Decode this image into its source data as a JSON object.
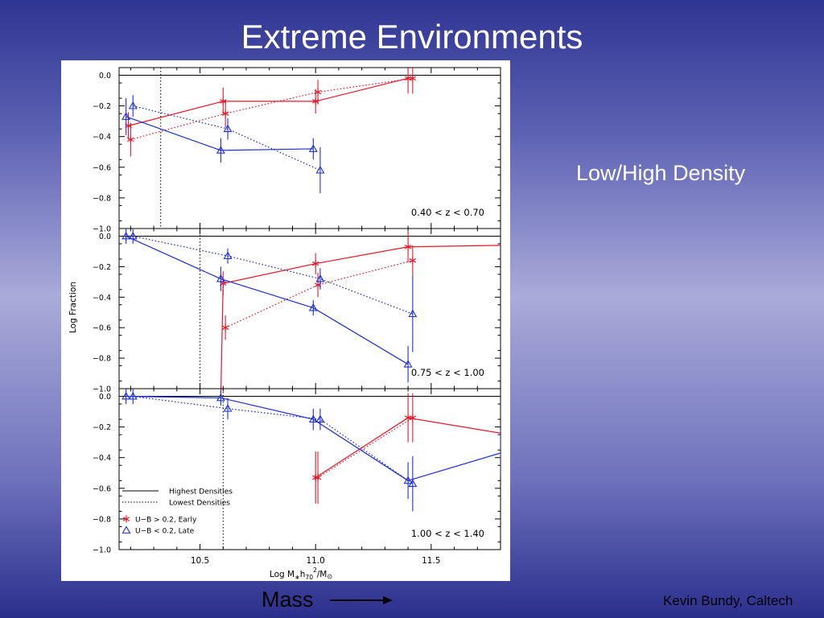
{
  "slide": {
    "title": "Extreme Environments",
    "side_label": "Low/High Density",
    "mass_label": "Mass",
    "credit": "Kevin Bundy, Caltech"
  },
  "colors": {
    "early": "#e8182a",
    "late": "#1f2fd6",
    "axis": "#000000"
  },
  "chart_data": {
    "type": "line",
    "ylabel": "Log Fraction",
    "xlabel_parts": [
      "Log M",
      "∗",
      "h",
      "70",
      "2",
      "/M",
      "⊙"
    ],
    "xlim": [
      10.15,
      11.8
    ],
    "ylim": [
      -1.0,
      0.05
    ],
    "xticks": [
      10.5,
      11.0,
      11.5
    ],
    "xtick_labels": [
      "10.5",
      "11.0",
      "11.5"
    ],
    "yticks": [
      0,
      -0.2,
      -0.4,
      -0.6,
      -0.8,
      -1.0
    ],
    "ytick_labels": [
      "0.0",
      "−0.2",
      "−0.4",
      "−0.6",
      "−0.8",
      "−1.0"
    ],
    "legend": {
      "placement": "bottom-left of bottom panel",
      "line_styles": [
        {
          "style": "solid",
          "label": "Highest Densities"
        },
        {
          "style": "dotted",
          "label": "Lowest Densities"
        }
      ],
      "populations": [
        {
          "marker": "asterisk",
          "color": "early",
          "label": "U−B > 0.2, Early"
        },
        {
          "marker": "triangle",
          "color": "late",
          "label": "U−B < 0.2, Late"
        }
      ]
    },
    "panels": [
      {
        "annotation": "0.40 < z < 0.70",
        "completeness_limit": 10.33,
        "series": [
          {
            "population": "early",
            "style": "solid",
            "points": [
              [
                10.19,
                -0.33,
                0.09
              ],
              [
                10.6,
                -0.17,
                0.09
              ],
              [
                11.0,
                -0.17,
                0.08
              ],
              [
                11.4,
                -0.02,
                0.1
              ]
            ]
          },
          {
            "population": "early",
            "style": "dotted",
            "points": [
              [
                10.2,
                -0.42,
                0.11
              ],
              [
                10.61,
                -0.25,
                0.09
              ],
              [
                11.01,
                -0.11,
                0.08
              ],
              [
                11.42,
                -0.02,
                0.1
              ]
            ]
          },
          {
            "population": "late",
            "style": "solid",
            "points": [
              [
                10.18,
                -0.27,
                0.12
              ],
              [
                10.59,
                -0.49,
                0.08
              ],
              [
                10.99,
                -0.48,
                0.07
              ]
            ]
          },
          {
            "population": "late",
            "style": "dotted",
            "points": [
              [
                10.21,
                -0.2,
                0.07
              ],
              [
                10.62,
                -0.35,
                0.07
              ],
              [
                11.02,
                -0.62,
                0.15
              ]
            ]
          }
        ]
      },
      {
        "annotation": "0.75 < z < 1.00",
        "completeness_limit": 10.5,
        "series": [
          {
            "population": "early",
            "style": "solid",
            "points": [
              [
                10.59,
                -1.05,
                0.0
              ],
              [
                10.6,
                -0.31,
                0.08
              ],
              [
                11.0,
                -0.18,
                0.07
              ],
              [
                11.4,
                -0.07,
                0.1
              ],
              [
                11.8,
                -0.06,
                0.0
              ]
            ]
          },
          {
            "population": "early",
            "style": "dotted",
            "points": [
              [
                10.61,
                -0.6,
                0.08
              ],
              [
                11.01,
                -0.32,
                0.08
              ],
              [
                11.42,
                -0.16,
                0.1
              ]
            ]
          },
          {
            "population": "late",
            "style": "solid",
            "points": [
              [
                10.18,
                0.0,
                0.05
              ],
              [
                10.59,
                -0.28,
                0.08
              ],
              [
                10.99,
                -0.47,
                0.05
              ],
              [
                11.4,
                -0.84,
                0.12
              ]
            ]
          },
          {
            "population": "late",
            "style": "dotted",
            "points": [
              [
                10.21,
                0.0,
                0.05
              ],
              [
                10.62,
                -0.13,
                0.05
              ],
              [
                11.02,
                -0.28,
                0.07
              ],
              [
                11.42,
                -0.51,
                0.25
              ]
            ]
          }
        ]
      },
      {
        "annotation": "1.00 < z < 1.40",
        "completeness_limit": 10.6,
        "series": [
          {
            "population": "early",
            "style": "solid",
            "points": [
              [
                11.0,
                -0.53,
                0.17
              ],
              [
                11.4,
                -0.14,
                0.16
              ],
              [
                11.8,
                -0.24,
                0.0
              ]
            ]
          },
          {
            "population": "early",
            "style": "dotted",
            "points": [
              [
                11.01,
                -0.53,
                0.17
              ],
              [
                11.42,
                -0.14,
                0.16
              ]
            ]
          },
          {
            "population": "late",
            "style": "solid",
            "points": [
              [
                10.18,
                0.0,
                0.05
              ],
              [
                10.59,
                -0.01,
                0.05
              ],
              [
                10.99,
                -0.15,
                0.07
              ],
              [
                11.4,
                -0.55,
                0.12
              ],
              [
                11.8,
                -0.37,
                0.15
              ]
            ]
          },
          {
            "population": "late",
            "style": "dotted",
            "points": [
              [
                10.21,
                0.0,
                0.05
              ],
              [
                10.62,
                -0.08,
                0.07
              ],
              [
                11.02,
                -0.15,
                0.07
              ],
              [
                11.42,
                -0.57,
                0.18
              ]
            ]
          }
        ]
      }
    ]
  }
}
